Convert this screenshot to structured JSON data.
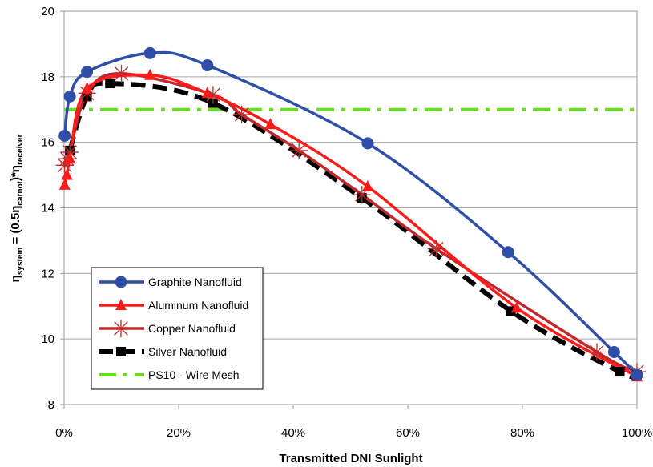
{
  "chart_data": {
    "type": "line",
    "xlabel": "Transmitted DNI Sunlight",
    "ylabel": {
      "base": "η",
      "sub_lhs": "system",
      "eq": " = (0.5η",
      "sub_carnot": "carnot",
      "mid": ")*η",
      "sub_recv": "receiver"
    },
    "xlim": [
      0,
      100
    ],
    "ylim": [
      8,
      20
    ],
    "x_ticks": [
      0,
      20,
      40,
      60,
      80,
      100
    ],
    "x_tick_labels": [
      "0%",
      "20%",
      "40%",
      "60%",
      "80%",
      "100%"
    ],
    "y_ticks": [
      8,
      10,
      12,
      14,
      16,
      18,
      20
    ],
    "y_tick_labels": [
      "8",
      "10",
      "12",
      "14",
      "16",
      "18",
      "20"
    ],
    "grid": "horizontal",
    "legend_position": "bottom-left",
    "series": [
      {
        "name": "Graphite Nanofluid",
        "color": "#2E4EA8",
        "marker": "circle",
        "style": "solid",
        "x": [
          0.1,
          1,
          4,
          15,
          25,
          53,
          77.5,
          96,
          100
        ],
        "y": [
          16.2,
          17.4,
          18.15,
          18.72,
          18.35,
          15.97,
          12.65,
          9.6,
          8.9
        ]
      },
      {
        "name": "Aluminum Nanofluid",
        "color": "#FF1A1A",
        "marker": "triangle",
        "style": "solid",
        "x": [
          0.1,
          0.5,
          1,
          4,
          15,
          25,
          36,
          53,
          79,
          100
        ],
        "y": [
          14.7,
          15.0,
          15.5,
          17.65,
          18.05,
          17.5,
          16.55,
          14.65,
          10.95,
          8.85
        ]
      },
      {
        "name": "Copper Nanofluid",
        "color": "#C0282B",
        "marker": "star",
        "style": "solid",
        "x": [
          0.1,
          0.5,
          1,
          4,
          10,
          26,
          31,
          41,
          52,
          65,
          93,
          100
        ],
        "y": [
          15.3,
          15.5,
          15.7,
          17.5,
          18.1,
          17.45,
          16.85,
          15.75,
          14.4,
          12.75,
          9.6,
          9.0
        ]
      },
      {
        "name": "Silver Nanofluid",
        "color": "#000000",
        "marker": "square",
        "style": "dashed",
        "x": [
          1,
          4,
          8,
          26,
          52,
          78,
          97,
          100
        ],
        "y": [
          15.75,
          17.4,
          17.8,
          17.2,
          14.3,
          10.85,
          9.0,
          8.9
        ]
      },
      {
        "name": "PS10 - Wire Mesh",
        "color": "#66DD22",
        "marker": "none",
        "style": "dashdot",
        "x": [
          0,
          100
        ],
        "y": [
          17,
          17
        ]
      }
    ]
  }
}
